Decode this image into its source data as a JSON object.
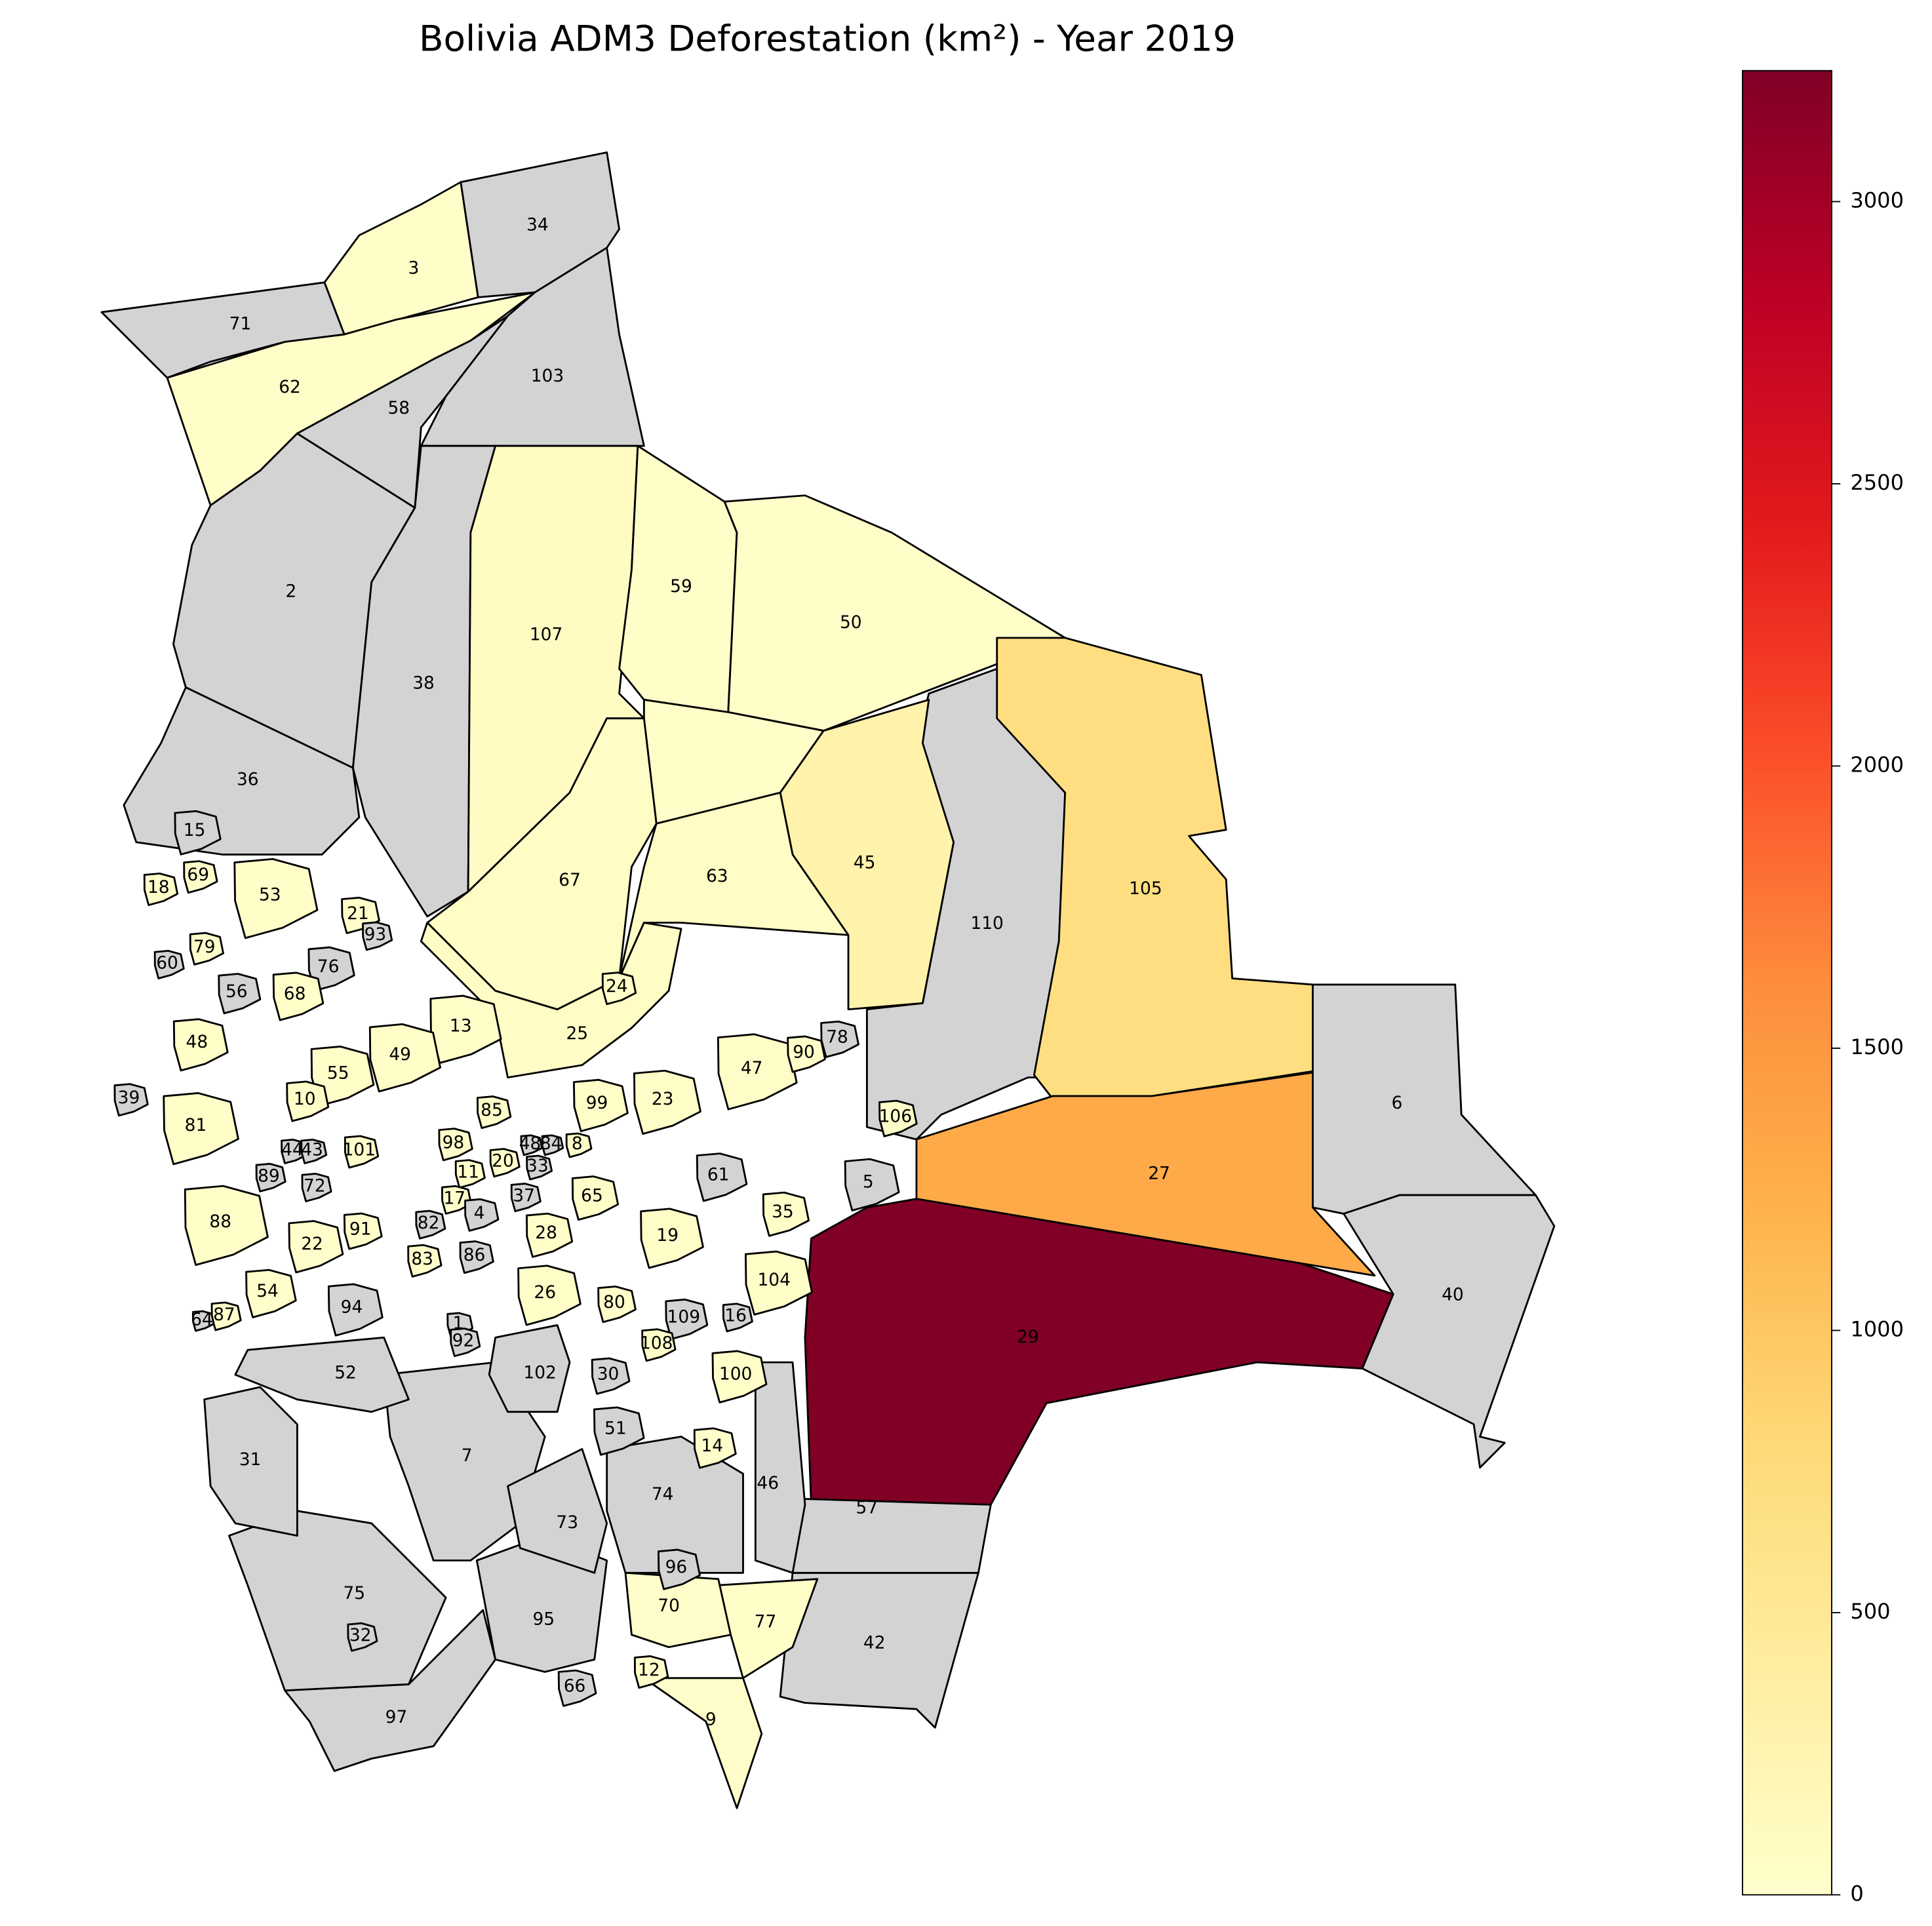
{
  "chart_data": {
    "type": "choropleth",
    "title": "Bolivia ADM3 Deforestation (km²) - Year 2019",
    "colormap": "YlOrRd",
    "missing_color": "#d3d3d3",
    "edge_color": "#000000",
    "vlim": [
      0,
      3232
    ],
    "ticks": [
      0,
      500,
      1000,
      1500,
      2000,
      2500,
      3000
    ],
    "regions": [
      {
        "label": "34"
      },
      {
        "label": "3",
        "value": 30
      },
      {
        "label": "71"
      },
      {
        "label": "62",
        "value": 40
      },
      {
        "label": "58"
      },
      {
        "label": "103"
      },
      {
        "label": "2"
      },
      {
        "label": "38"
      },
      {
        "label": "107",
        "value": 80
      },
      {
        "label": "59",
        "value": 40
      },
      {
        "label": "50",
        "value": 30
      },
      {
        "label": "36"
      },
      {
        "label": null,
        "value": 30
      },
      {
        "label": "110"
      },
      {
        "label": "105",
        "value": 700
      },
      {
        "label": "27",
        "value": 1300
      },
      {
        "label": "29",
        "value": 3232
      },
      {
        "label": "6"
      },
      {
        "label": "40"
      },
      {
        "label": "45",
        "value": 300
      },
      {
        "label": "63",
        "value": 60
      },
      {
        "label": "67",
        "value": 60
      },
      {
        "label": "25",
        "value": 60
      },
      {
        "label": "42"
      },
      {
        "label": "57"
      },
      {
        "label": "46"
      },
      {
        "label": "7"
      },
      {
        "label": "97"
      },
      {
        "label": "75"
      },
      {
        "label": "95"
      },
      {
        "label": "9",
        "value": 20
      },
      {
        "label": "77",
        "value": 30
      },
      {
        "label": "70",
        "value": 20
      },
      {
        "label": "74"
      },
      {
        "label": "73"
      },
      {
        "label": "31"
      },
      {
        "label": "52"
      },
      {
        "label": "102"
      },
      {
        "label": "15"
      },
      {
        "label": "18",
        "value": 20
      },
      {
        "label": "69",
        "value": 20
      },
      {
        "label": "53",
        "value": 30
      },
      {
        "label": "21",
        "value": 20
      },
      {
        "label": "93"
      },
      {
        "label": "76"
      },
      {
        "label": "79",
        "value": 20
      },
      {
        "label": "60"
      },
      {
        "label": "56"
      },
      {
        "label": "68",
        "value": 30
      },
      {
        "label": "13",
        "value": 40
      },
      {
        "label": "49",
        "value": 40
      },
      {
        "label": "48",
        "value": 30
      },
      {
        "label": "55",
        "value": 30
      },
      {
        "label": "10",
        "value": 30
      },
      {
        "label": "39"
      },
      {
        "label": "81",
        "value": 30
      },
      {
        "label": "85",
        "value": 30
      },
      {
        "label": "98",
        "value": 20
      },
      {
        "label": "99",
        "value": 40
      },
      {
        "label": "23",
        "value": 50
      },
      {
        "label": "47",
        "value": 50
      },
      {
        "label": "90",
        "value": 30
      },
      {
        "label": "78"
      },
      {
        "label": "106",
        "value": 30
      },
      {
        "label": "5"
      },
      {
        "label": "61"
      },
      {
        "label": "35",
        "value": 30
      },
      {
        "label": "44"
      },
      {
        "label": "43"
      },
      {
        "label": "101",
        "value": 20
      },
      {
        "label": "20",
        "value": 20
      },
      {
        "label": "48"
      },
      {
        "label": "84"
      },
      {
        "label": "8",
        "value": 20
      },
      {
        "label": "33"
      },
      {
        "label": "11",
        "value": 20
      },
      {
        "label": "89"
      },
      {
        "label": "72"
      },
      {
        "label": "17",
        "value": 20
      },
      {
        "label": "37"
      },
      {
        "label": "65",
        "value": 30
      },
      {
        "label": "91",
        "value": 20
      },
      {
        "label": "88",
        "value": 30
      },
      {
        "label": "22",
        "value": 20
      },
      {
        "label": "82"
      },
      {
        "label": "4"
      },
      {
        "label": "28",
        "value": 30
      },
      {
        "label": "19",
        "value": 40
      },
      {
        "label": "104",
        "value": 40
      },
      {
        "label": "86"
      },
      {
        "label": "83",
        "value": 20
      },
      {
        "label": "54",
        "value": 20
      },
      {
        "label": "94"
      },
      {
        "label": "26",
        "value": 30
      },
      {
        "label": "80",
        "value": 20
      },
      {
        "label": "109"
      },
      {
        "label": "16"
      },
      {
        "label": "87",
        "value": 20
      },
      {
        "label": "64"
      },
      {
        "label": "1"
      },
      {
        "label": "92"
      },
      {
        "label": "108",
        "value": 20
      },
      {
        "label": "100",
        "value": 30
      },
      {
        "label": "30"
      },
      {
        "label": "14",
        "value": 20
      },
      {
        "label": "51"
      },
      {
        "label": "96"
      },
      {
        "label": "12",
        "value": 20
      },
      {
        "label": "66"
      },
      {
        "label": "24",
        "value": 30
      },
      {
        "label": "32"
      }
    ]
  }
}
